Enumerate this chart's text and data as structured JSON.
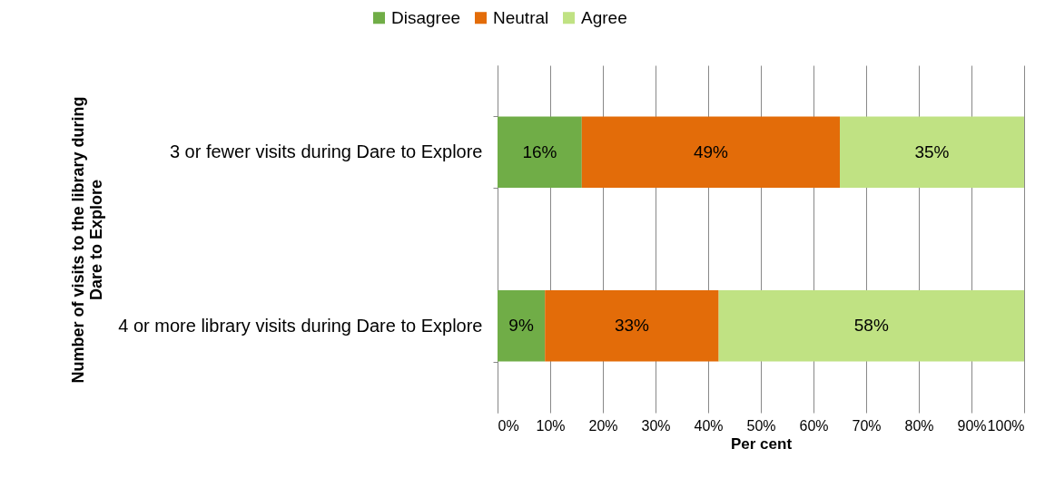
{
  "chart_data": {
    "type": "bar",
    "orientation": "horizontal",
    "stacked": true,
    "categories": [
      "3 or fewer visits during Dare to Explore",
      "4 or more library visits during Dare to Explore"
    ],
    "series": [
      {
        "name": "Disagree",
        "color": "#70ad47",
        "values": [
          16,
          9
        ],
        "value_labels": [
          "16%",
          "9%"
        ]
      },
      {
        "name": "Neutral",
        "color": "#e36c09",
        "values": [
          49,
          33
        ],
        "value_labels": [
          "49%",
          "33%"
        ]
      },
      {
        "name": "Agree",
        "color": "#c0e283",
        "values": [
          35,
          58
        ],
        "value_labels": [
          "35%",
          "58%"
        ]
      }
    ],
    "xlim": [
      0,
      100
    ],
    "xticks": [
      {
        "value": 0,
        "label": "0%"
      },
      {
        "value": 10,
        "label": "10%"
      },
      {
        "value": 20,
        "label": "20%"
      },
      {
        "value": 30,
        "label": "30%"
      },
      {
        "value": 40,
        "label": "40%"
      },
      {
        "value": 50,
        "label": "50%"
      },
      {
        "value": 60,
        "label": "60%"
      },
      {
        "value": 70,
        "label": "70%"
      },
      {
        "value": 80,
        "label": "80%"
      },
      {
        "value": 90,
        "label": "90%"
      },
      {
        "value": 100,
        "label": "100%"
      }
    ],
    "xlabel": "Per cent",
    "ylabel": "Number of visits to the library during Dare to Explore",
    "grid": "x",
    "legend": "top"
  }
}
